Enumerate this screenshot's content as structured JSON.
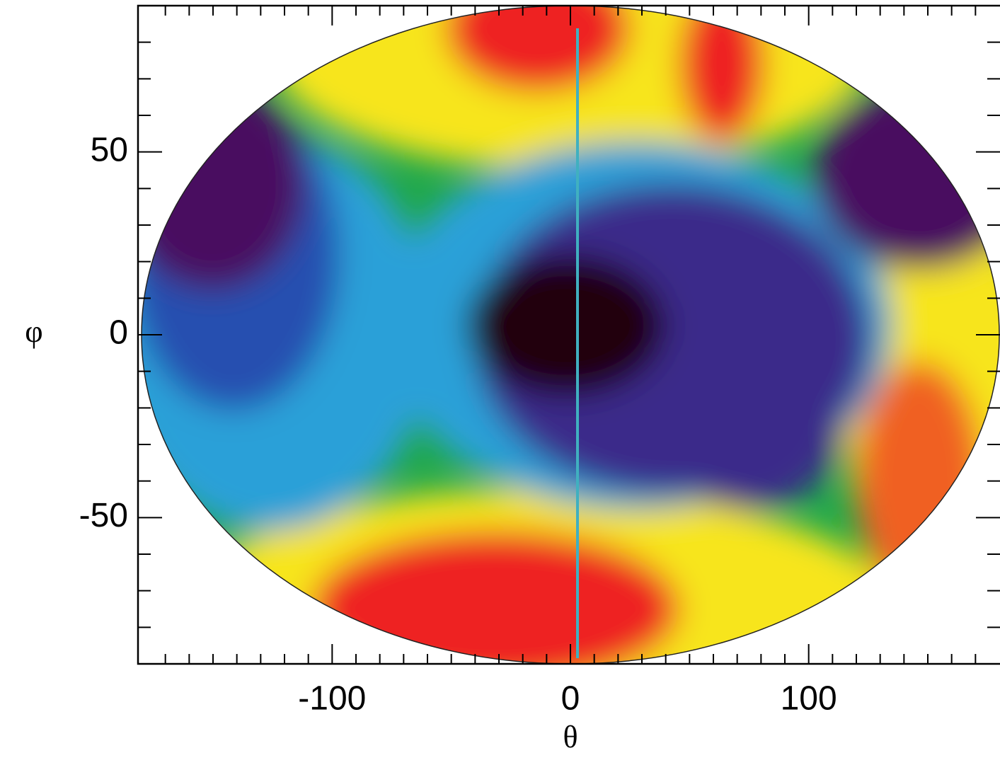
{
  "chart_data": {
    "type": "map",
    "xlabel": "θ",
    "ylabel": "φ",
    "xlim": [
      -180,
      180
    ],
    "ylim": [
      -90,
      90
    ],
    "xticks": [
      -100,
      0,
      100
    ],
    "yticks": [
      -50,
      0,
      50
    ],
    "x_minor_ticks": [
      -170,
      -160,
      -150,
      -140,
      -130,
      -120,
      -110,
      -90,
      -80,
      -70,
      -60,
      -50,
      -40,
      -30,
      -20,
      -10,
      10,
      20,
      30,
      40,
      50,
      60,
      70,
      80,
      90,
      110,
      120,
      130,
      140,
      150,
      160,
      170
    ],
    "y_minor_ticks": [
      -80,
      -70,
      -60,
      -40,
      -30,
      -20,
      -10,
      10,
      20,
      30,
      40,
      60,
      70,
      80
    ]
  }
}
